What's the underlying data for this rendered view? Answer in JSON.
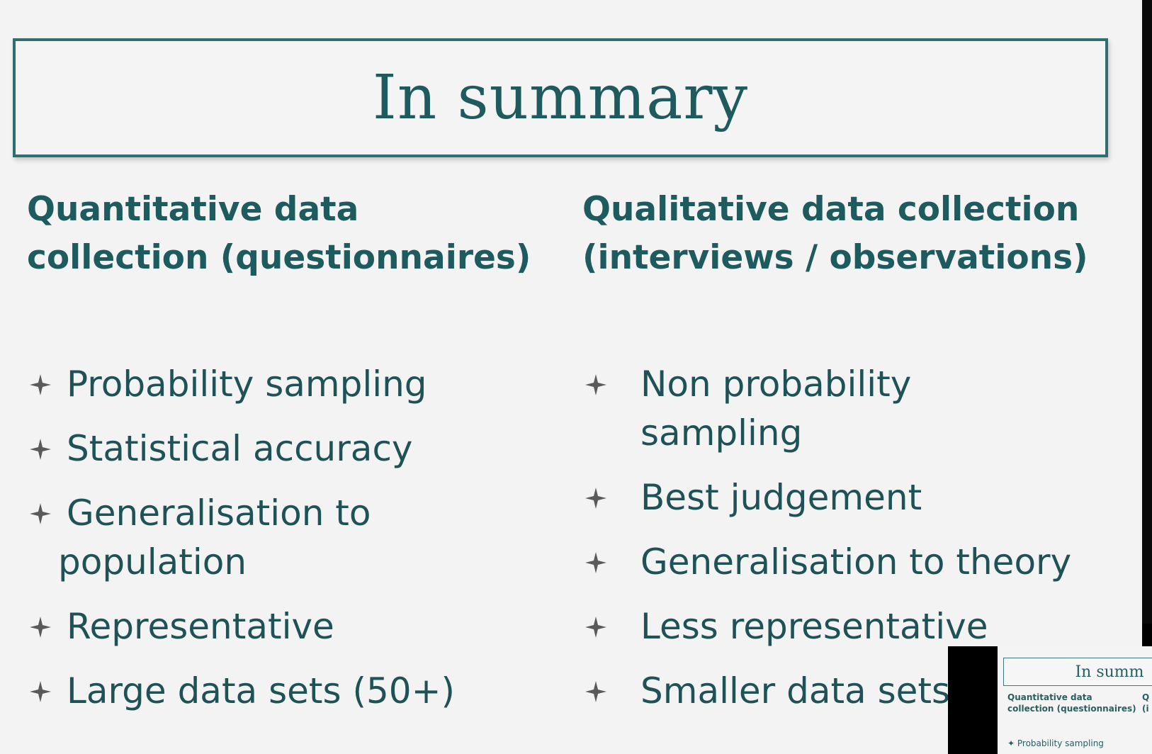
{
  "slide": {
    "title": "In summary",
    "left_column": {
      "heading_line1": "Quantitative data",
      "heading_line2": "collection (questionnaires)",
      "items": [
        {
          "line1": "Probability sampling",
          "line2": ""
        },
        {
          "line1": "Statistical accuracy",
          "line2": ""
        },
        {
          "line1": "Generalisation to",
          "line2": "population"
        },
        {
          "line1": "Representative",
          "line2": ""
        },
        {
          "line1": "Large data sets (50+)",
          "line2": ""
        }
      ]
    },
    "right_column": {
      "heading_line1": "Qualitative data collection",
      "heading_line2": "(interviews / observations)",
      "items": [
        {
          "line1": "Non probability",
          "line2": "sampling"
        },
        {
          "line1": "Best judgement",
          "line2": ""
        },
        {
          "line1": "Generalisation to theory",
          "line2": ""
        },
        {
          "line1": "Less representative",
          "line2": ""
        },
        {
          "line1": "Smaller data sets",
          "line2": ""
        }
      ]
    }
  },
  "thumbnail": {
    "title": "In summ",
    "heading_left_line1": "Quantitative data",
    "heading_left_line2": "collection (questionnaires)",
    "heading_right_line1": "Q",
    "heading_right_line2": "(i",
    "first_bullet": "✦ Probability sampling"
  },
  "colors": {
    "accent": "#1d5b5f",
    "border": "#2f6f72",
    "bullet_star": "#5a5a5a",
    "background": "#f3f3f3"
  },
  "icons": {
    "bullet": "four-point-star-icon"
  }
}
